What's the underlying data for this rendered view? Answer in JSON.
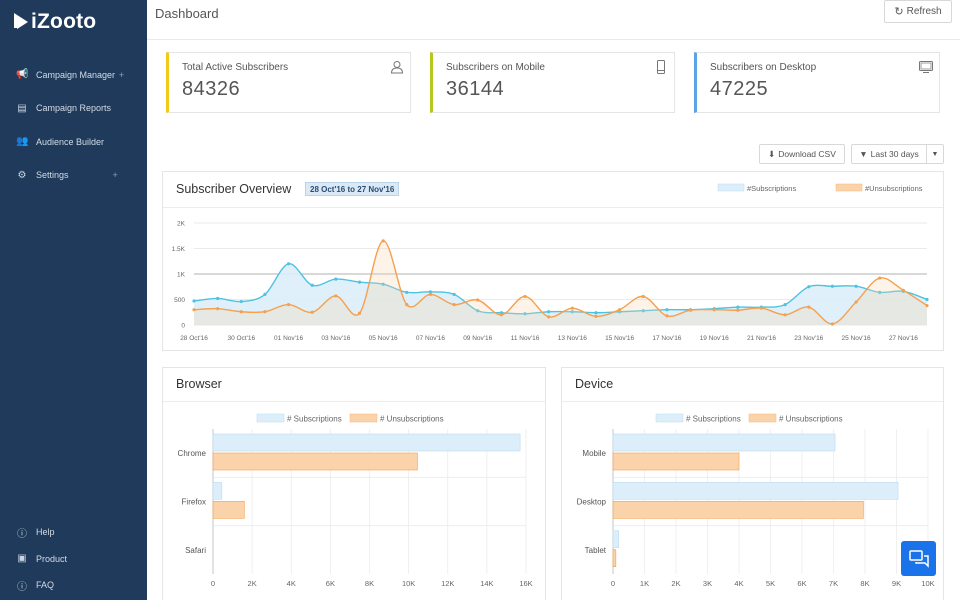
{
  "app": {
    "logo_text": "iZooto"
  },
  "sidebar": {
    "items": [
      {
        "label": "Campaign Manager",
        "icon": "megaphone-icon",
        "expandable": "+"
      },
      {
        "label": "Campaign Reports",
        "icon": "reports-icon",
        "expandable": ""
      },
      {
        "label": "Audience Builder",
        "icon": "users-icon",
        "expandable": ""
      },
      {
        "label": "Settings",
        "icon": "gear-icon",
        "expandable": "+"
      }
    ],
    "bottom_items": [
      {
        "label": "Help",
        "icon": "info-icon"
      },
      {
        "label": "Product",
        "icon": "product-icon"
      },
      {
        "label": "FAQ",
        "icon": "question-icon"
      }
    ]
  },
  "header": {
    "title": "Dashboard",
    "refresh_label": "Refresh"
  },
  "stats": [
    {
      "label": "Total Active Subscribers",
      "value": "84326",
      "icon": "user-icon",
      "accent": "#f3c91a"
    },
    {
      "label": "Subscribers on Mobile",
      "value": "36144",
      "icon": "mobile-icon",
      "accent": "#b5c81e"
    },
    {
      "label": "Subscribers on Desktop",
      "value": "47225",
      "icon": "desktop-icon",
      "accent": "#5aa3e6"
    }
  ],
  "toolbar": {
    "download_label": "Download CSV",
    "range_label": "Last 30 days"
  },
  "overview": {
    "title": "Subscriber Overview",
    "date_range": "28 Oct'16 to 27 Nov'16"
  },
  "browser": {
    "title": "Browser"
  },
  "device": {
    "title": "Device"
  },
  "colors": {
    "subscriptions": "#4ec3e0",
    "unsubscriptions": "#f5a04e",
    "sub_fill": "#dceef9",
    "unsub_fill": "#fbd3aa"
  },
  "chart_data": [
    {
      "type": "area",
      "legend": [
        "#Subscriptions",
        "#Unsubscriptions"
      ],
      "x_tick_labels": [
        "28 Oct'16",
        "30 Oct'16",
        "01 Nov'16",
        "03 Nov'16",
        "05 Nov'16",
        "07 Nov'16",
        "09 Nov'16",
        "11 Nov'16",
        "13 Nov'16",
        "15 Nov'16",
        "17 Nov'16",
        "19 Nov'16",
        "21 Nov'16",
        "23 Nov'16",
        "25 Nov'16",
        "27 Nov'16"
      ],
      "y_tick_labels": [
        "0",
        "500",
        "1K",
        "1.5K",
        "2K"
      ],
      "ylim": [
        0,
        2000
      ],
      "series": [
        {
          "name": "#Subscriptions",
          "values": [
            470,
            520,
            460,
            600,
            1200,
            780,
            900,
            840,
            800,
            640,
            650,
            600,
            280,
            240,
            220,
            260,
            260,
            240,
            260,
            280,
            300,
            300,
            320,
            350,
            350,
            400,
            750,
            760,
            760,
            640,
            660,
            500
          ]
        },
        {
          "name": "#Unsubscriptions",
          "values": [
            300,
            320,
            260,
            260,
            400,
            250,
            570,
            230,
            1650,
            400,
            600,
            400,
            490,
            200,
            560,
            160,
            330,
            170,
            300,
            560,
            180,
            290,
            300,
            290,
            330,
            200,
            350,
            20,
            450,
            920,
            680,
            380
          ]
        }
      ]
    },
    {
      "type": "bar",
      "title": "Browser",
      "categories": [
        "Chrome",
        "Firefox",
        "Safari"
      ],
      "x_tick_labels": [
        "0",
        "2K",
        "4K",
        "6K",
        "8K",
        "10K",
        "12K",
        "14K",
        "16K"
      ],
      "xlim": [
        0,
        16000
      ],
      "series": [
        {
          "name": "# Subscriptions",
          "values": [
            15700,
            450,
            0
          ]
        },
        {
          "name": "# Unsubscriptions",
          "values": [
            10450,
            1600,
            0
          ]
        }
      ]
    },
    {
      "type": "bar",
      "title": "Device",
      "categories": [
        "Mobile",
        "Desktop",
        "Tablet"
      ],
      "x_tick_labels": [
        "0",
        "1K",
        "2K",
        "3K",
        "4K",
        "5K",
        "6K",
        "7K",
        "8K",
        "9K",
        "10K"
      ],
      "xlim": [
        0,
        10000
      ],
      "series": [
        {
          "name": "# Subscriptions",
          "values": [
            7050,
            9050,
            180
          ]
        },
        {
          "name": "# Unsubscriptions",
          "values": [
            4000,
            7950,
            90
          ]
        }
      ]
    }
  ]
}
